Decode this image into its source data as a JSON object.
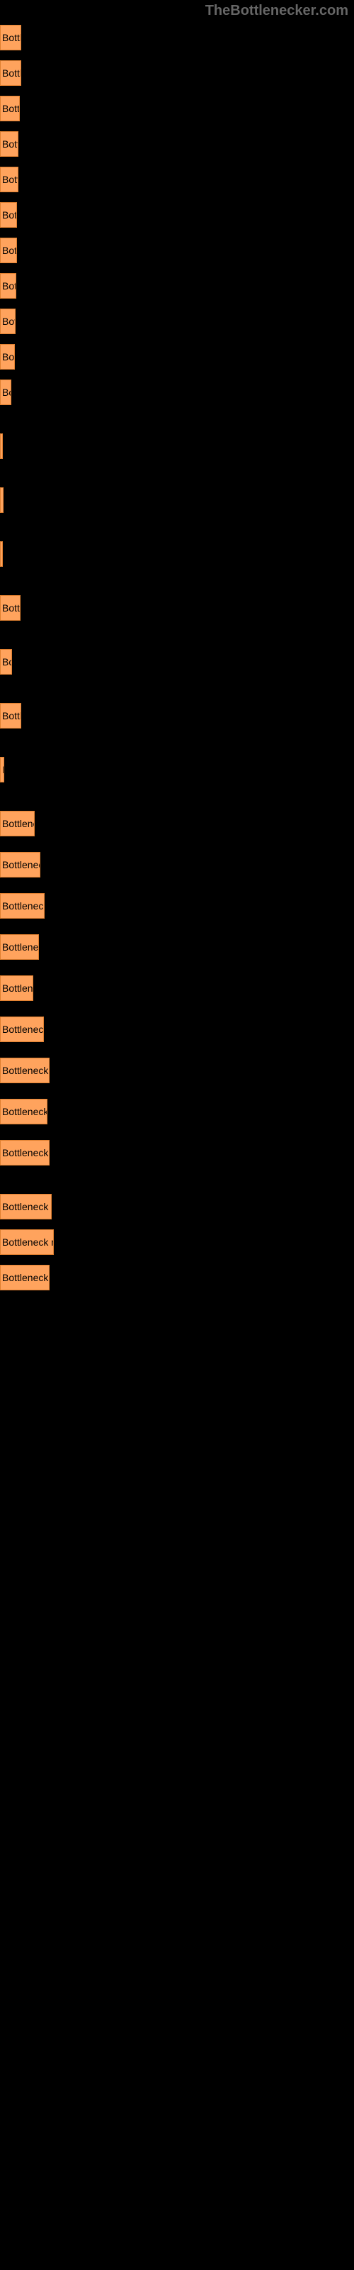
{
  "header": "TheBottlenecker.com",
  "bar_color": "#ffa35d",
  "bar_border": "#e08030",
  "background": "#000000",
  "label_color": "#aaaaaa",
  "bar_text_color": "#000000",
  "max_width": 500,
  "bar_full_text": "Bottleneck results",
  "rows": [
    {
      "width_pct": 6.0,
      "label": ""
    },
    {
      "width_pct": 6.0,
      "label": ""
    },
    {
      "width_pct": 5.6,
      "label": ""
    },
    {
      "width_pct": 5.2,
      "label": ""
    },
    {
      "width_pct": 5.2,
      "label": ""
    },
    {
      "width_pct": 4.8,
      "label": ""
    },
    {
      "width_pct": 4.8,
      "label": ""
    },
    {
      "width_pct": 4.6,
      "label": ""
    },
    {
      "width_pct": 4.4,
      "label": ""
    },
    {
      "width_pct": 4.2,
      "label": ""
    },
    {
      "width_pct": 3.2,
      "label": ""
    },
    {
      "width_pct": 0.6,
      "label": ""
    },
    {
      "width_pct": 1.0,
      "label": ""
    },
    {
      "width_pct": 0.4,
      "label": ""
    },
    {
      "width_pct": 5.8,
      "label": ""
    },
    {
      "width_pct": 3.4,
      "label": ""
    },
    {
      "width_pct": 6.0,
      "label": ""
    },
    {
      "width_pct": 1.2,
      "label": ""
    },
    {
      "width_pct": 9.8,
      "label": ""
    },
    {
      "width_pct": 11.4,
      "label": ""
    },
    {
      "width_pct": 12.6,
      "label": ""
    },
    {
      "width_pct": 11.0,
      "label": ""
    },
    {
      "width_pct": 9.4,
      "label": ""
    },
    {
      "width_pct": 12.4,
      "label": ""
    },
    {
      "width_pct": 14.0,
      "label": ""
    },
    {
      "width_pct": 13.4,
      "label": ""
    },
    {
      "width_pct": 14.0,
      "label": ""
    },
    {
      "width_pct": 14.6,
      "label": ""
    },
    {
      "width_pct": 15.2,
      "label": ""
    },
    {
      "width_pct": 14.0,
      "label": ""
    }
  ]
}
